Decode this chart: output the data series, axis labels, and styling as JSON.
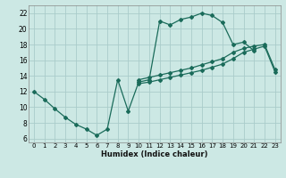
{
  "xlabel": "Humidex (Indice chaleur)",
  "bg_color": "#cce8e4",
  "grid_color": "#aaccca",
  "line_color": "#1a6b5a",
  "xlim": [
    -0.5,
    23.5
  ],
  "ylim": [
    5.5,
    23.0
  ],
  "xticks": [
    0,
    1,
    2,
    3,
    4,
    5,
    6,
    7,
    8,
    9,
    10,
    11,
    12,
    13,
    14,
    15,
    16,
    17,
    18,
    19,
    20,
    21,
    22,
    23
  ],
  "yticks": [
    6,
    8,
    10,
    12,
    14,
    16,
    18,
    20,
    22
  ],
  "line1_x": [
    0,
    1,
    2,
    3,
    4,
    5,
    6,
    7,
    8,
    9,
    10,
    11,
    12,
    13,
    14,
    15,
    16,
    17,
    18,
    19,
    20,
    21
  ],
  "line1_y": [
    12,
    11,
    9.8,
    8.7,
    7.8,
    7.2,
    6.4,
    7.2,
    13.5,
    9.5,
    13.2,
    13.5,
    21.0,
    20.5,
    21.2,
    21.5,
    22.0,
    21.7,
    20.8,
    18.0,
    18.3,
    17.2
  ],
  "line2_x": [
    10,
    11,
    12,
    13,
    14,
    15,
    16,
    17,
    18,
    19,
    20,
    21,
    22,
    23
  ],
  "line2_y": [
    13.5,
    13.8,
    14.1,
    14.4,
    14.7,
    15.0,
    15.4,
    15.8,
    16.2,
    17.0,
    17.5,
    17.8,
    18.0,
    14.8
  ],
  "line3_x": [
    10,
    11,
    12,
    13,
    14,
    15,
    16,
    17,
    18,
    19,
    20,
    21,
    22,
    23
  ],
  "line3_y": [
    13.0,
    13.2,
    13.5,
    13.8,
    14.1,
    14.4,
    14.7,
    15.1,
    15.5,
    16.2,
    17.0,
    17.4,
    17.8,
    14.5
  ]
}
